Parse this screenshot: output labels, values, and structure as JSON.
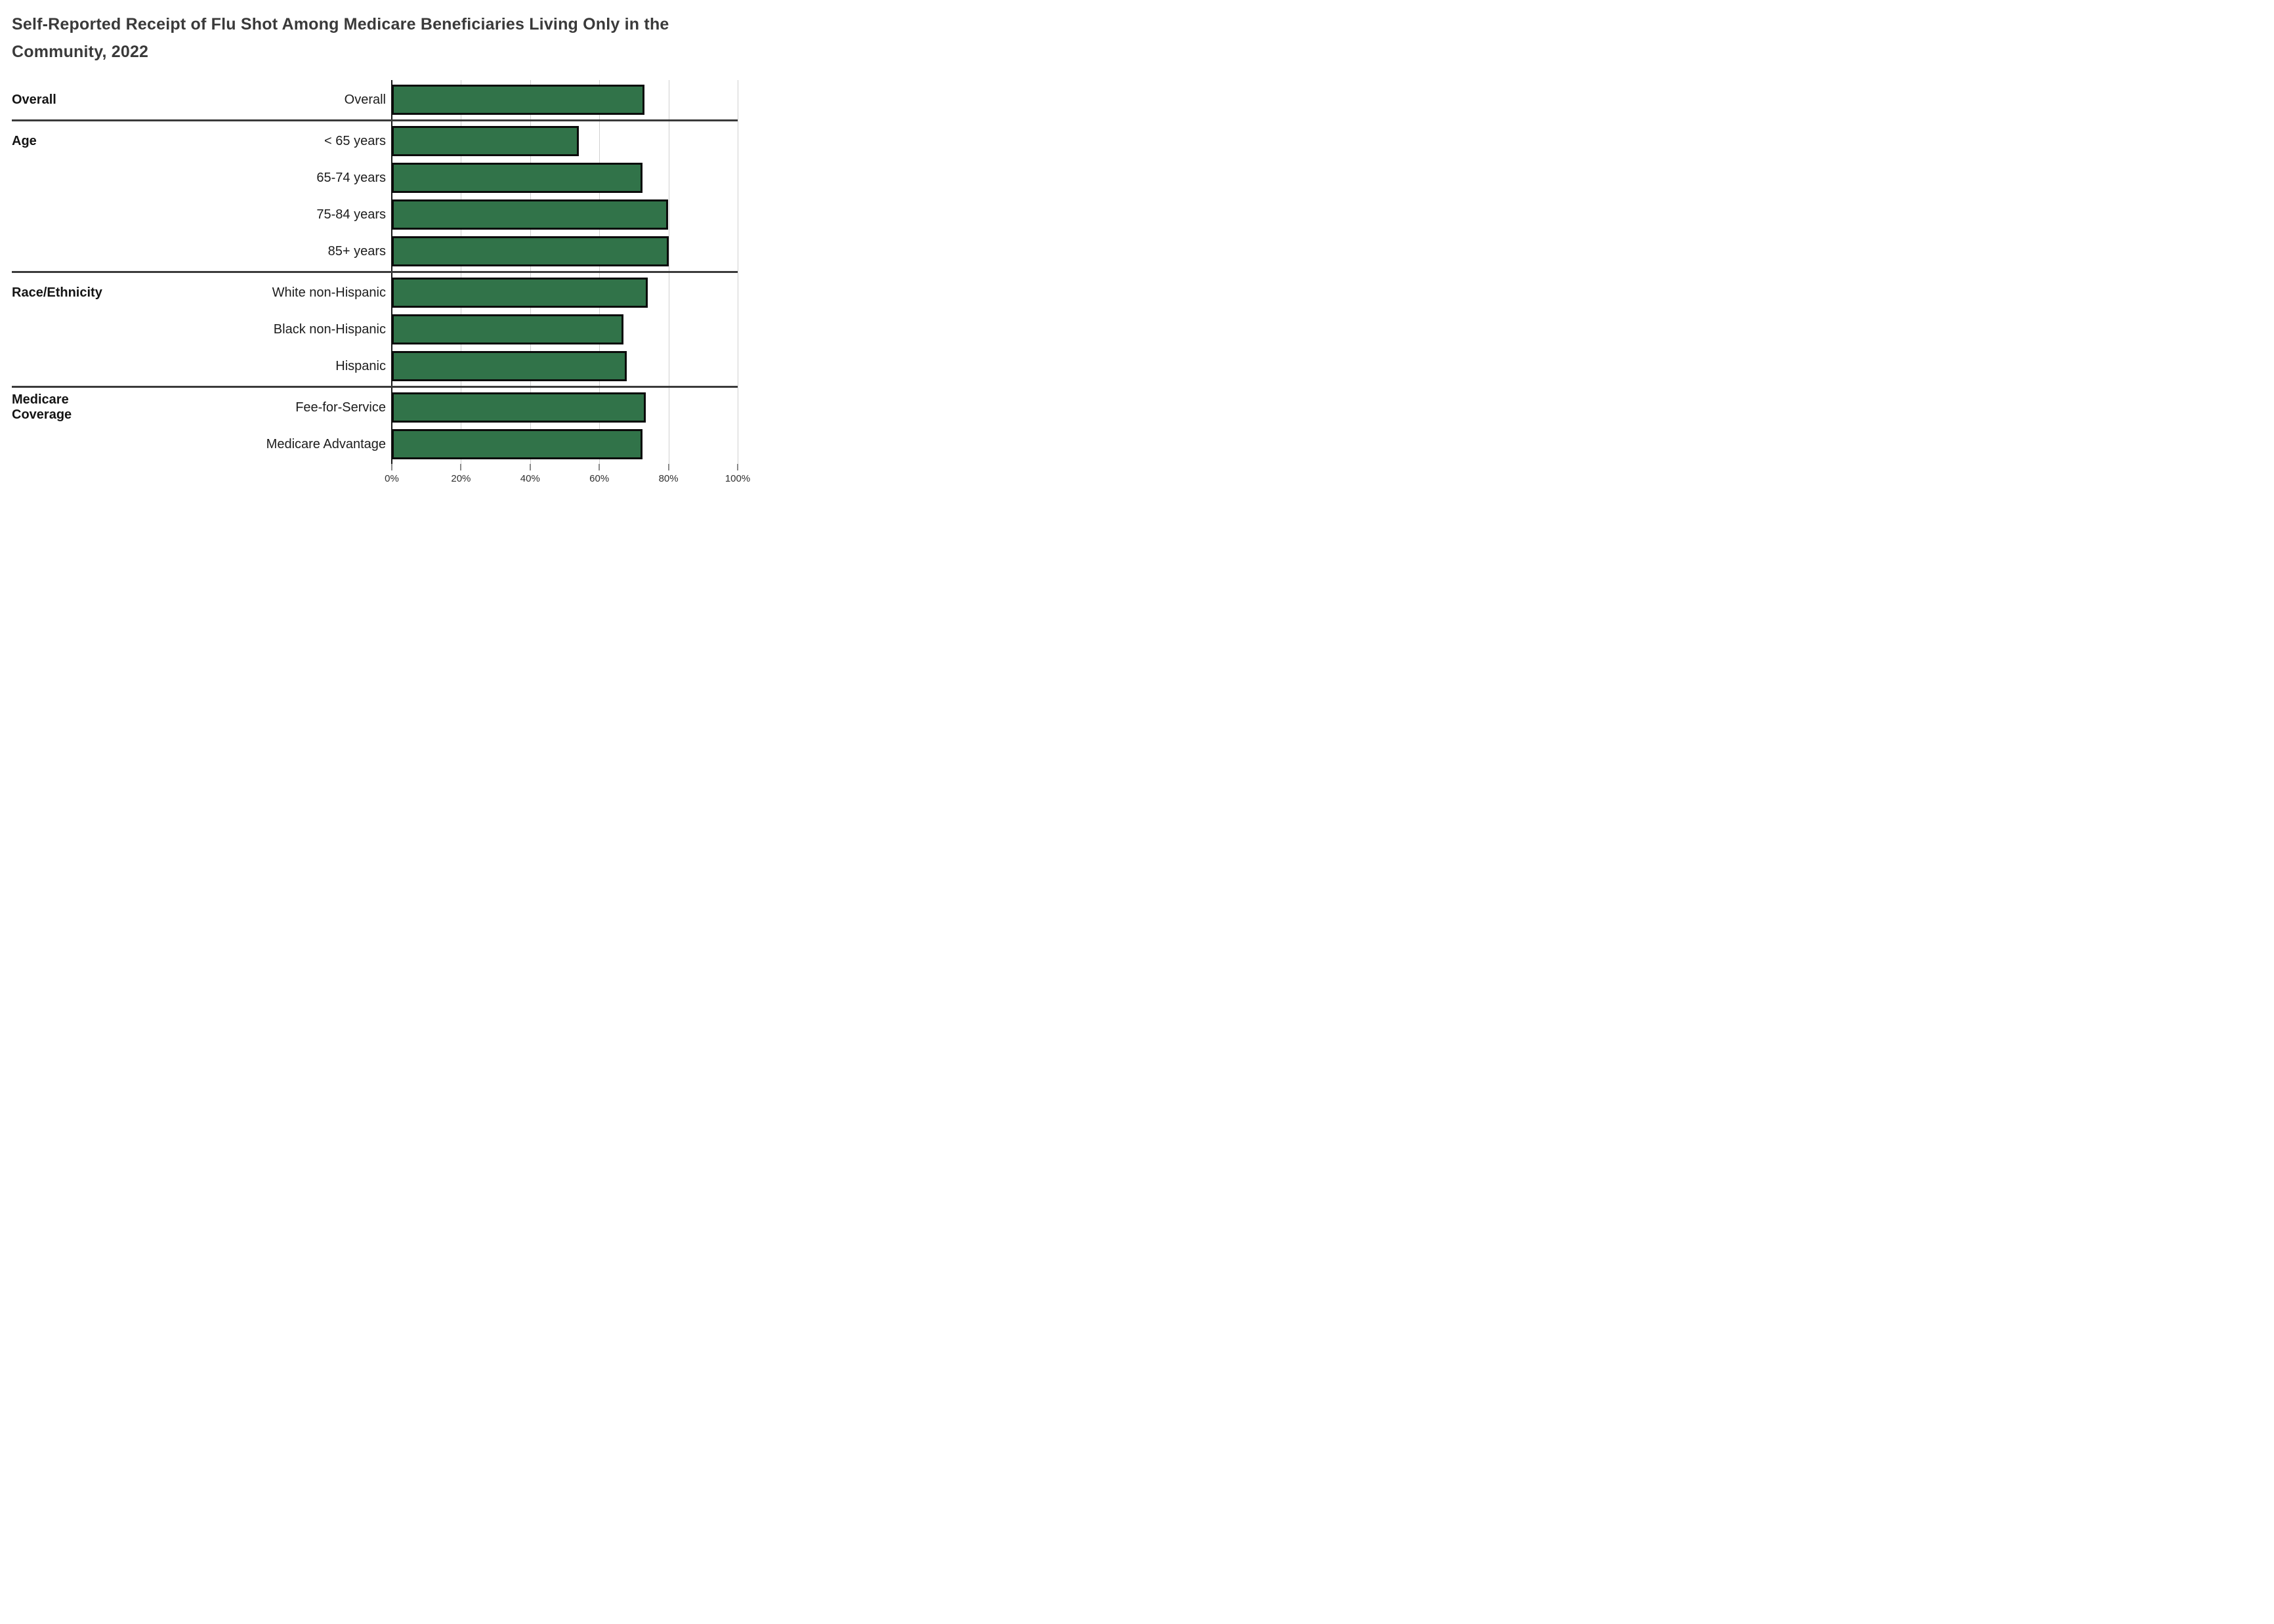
{
  "title": "Self-Reported Receipt of Flu Shot Among Medicare Beneficiaries Living Only in the Community, 2022",
  "colors": {
    "bar_fill": "#317349",
    "bar_border": "#0b0b0b",
    "separator": "#3a3a3a",
    "gridline": "#d0d0d0",
    "axis_line": "#141414",
    "title_text": "#3a3a3a"
  },
  "chart_data": {
    "type": "bar",
    "orientation": "horizontal",
    "title": "Self-Reported Receipt of Flu Shot Among Medicare Beneficiaries Living Only in the Community, 2022",
    "xlabel": "",
    "ylabel": "",
    "unit": "%",
    "xlim": [
      0,
      100
    ],
    "x_tick_labels": [
      "0%",
      "20%",
      "40%",
      "60%",
      "80%",
      "100%"
    ],
    "grid": "vertical-only",
    "legend": "none",
    "groups": [
      {
        "label": "Overall",
        "bars": [
          {
            "category": "Overall",
            "value": 73
          }
        ]
      },
      {
        "label": "Age",
        "bars": [
          {
            "category": "< 65 years",
            "value": 54
          },
          {
            "category": "65-74 years",
            "value": 72.5
          },
          {
            "category": "75-84 years",
            "value": 79.8
          },
          {
            "category": "85+ years",
            "value": 80
          }
        ]
      },
      {
        "label": "Race/Ethnicity",
        "bars": [
          {
            "category": "White non-Hispanic",
            "value": 74
          },
          {
            "category": "Black non-Hispanic",
            "value": 67
          },
          {
            "category": "Hispanic",
            "value": 68
          }
        ]
      },
      {
        "label": "Medicare Coverage",
        "bars": [
          {
            "category": "Fee-for-Service",
            "value": 73.5
          },
          {
            "category": "Medicare Advantage",
            "value": 72.5
          }
        ]
      }
    ]
  }
}
